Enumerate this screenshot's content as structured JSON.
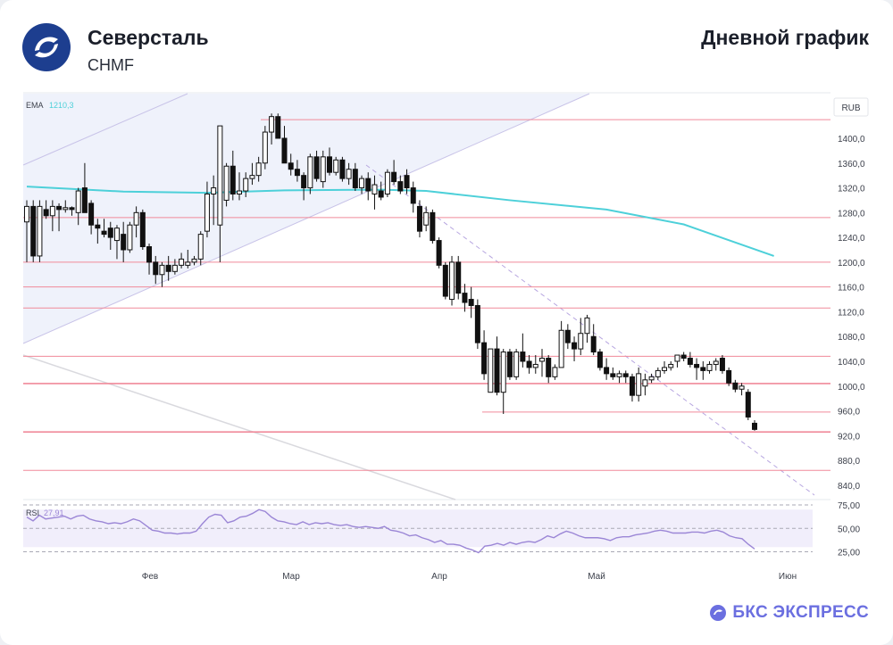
{
  "header": {
    "company": "Северсталь",
    "ticker": "CHMF",
    "chart_title": "Дневной график"
  },
  "brand": {
    "name": "БКС ЭКСПРЕСС"
  },
  "colors": {
    "candle_up": "#ffffff",
    "candle_down": "#111111",
    "ema": "#4dd0d9",
    "level": "#f08a9a",
    "rsi": "#9b86d6",
    "channel_fill": "#edf1fb",
    "brand": "#6b6fe0"
  },
  "chart_data": [
    {
      "type": "candlestick",
      "currency_label": "RUB",
      "ylim": [
        820,
        1450
      ],
      "y_ticks": [
        "1400,0",
        "1360,0",
        "1320,0",
        "1280,0",
        "1240,0",
        "1200,0",
        "1160,0",
        "1120,0",
        "1080,0",
        "1040,0",
        "1000,0",
        "960,0",
        "920,0",
        "880,0",
        "840,0"
      ],
      "x_ticks": [
        "Фев",
        "Мар",
        "Апр",
        "Май",
        "Июн"
      ],
      "indicator": {
        "name": "EMA",
        "value": "1210,3"
      },
      "levels": [
        1430,
        1272,
        1200,
        1160,
        1126,
        1048,
        1004,
        958,
        926,
        864
      ],
      "ohlc": [
        [
          1265,
          1300,
          1200,
          1290
        ],
        [
          1290,
          1300,
          1200,
          1210
        ],
        [
          1210,
          1300,
          1200,
          1290
        ],
        [
          1285,
          1300,
          1270,
          1275
        ],
        [
          1275,
          1300,
          1250,
          1290
        ],
        [
          1290,
          1295,
          1250,
          1285
        ],
        [
          1285,
          1300,
          1280,
          1288
        ],
        [
          1288,
          1290,
          1275,
          1285
        ],
        [
          1280,
          1320,
          1260,
          1315
        ],
        [
          1320,
          1360,
          1280,
          1280
        ],
        [
          1295,
          1300,
          1245,
          1260
        ],
        [
          1260,
          1270,
          1230,
          1255
        ],
        [
          1250,
          1270,
          1240,
          1245
        ],
        [
          1255,
          1265,
          1220,
          1240
        ],
        [
          1235,
          1260,
          1205,
          1255
        ],
        [
          1245,
          1265,
          1200,
          1220
        ],
        [
          1220,
          1265,
          1215,
          1260
        ],
        [
          1260,
          1290,
          1240,
          1280
        ],
        [
          1280,
          1285,
          1220,
          1225
        ],
        [
          1225,
          1230,
          1180,
          1200
        ],
        [
          1200,
          1210,
          1165,
          1180
        ],
        [
          1180,
          1200,
          1160,
          1195
        ],
        [
          1195,
          1210,
          1170,
          1185
        ],
        [
          1185,
          1205,
          1180,
          1195
        ],
        [
          1195,
          1215,
          1190,
          1205
        ],
        [
          1195,
          1220,
          1190,
          1200
        ],
        [
          1200,
          1210,
          1195,
          1205
        ],
        [
          1205,
          1250,
          1195,
          1245
        ],
        [
          1250,
          1330,
          1240,
          1310
        ],
        [
          1310,
          1340,
          1260,
          1320
        ],
        [
          1260,
          1420,
          1200,
          1420
        ],
        [
          1300,
          1360,
          1290,
          1355
        ],
        [
          1355,
          1380,
          1300,
          1310
        ],
        [
          1310,
          1345,
          1300,
          1315
        ],
        [
          1315,
          1345,
          1305,
          1335
        ],
        [
          1335,
          1360,
          1325,
          1340
        ],
        [
          1340,
          1370,
          1330,
          1360
        ],
        [
          1360,
          1420,
          1350,
          1410
        ],
        [
          1410,
          1440,
          1390,
          1435
        ],
        [
          1435,
          1440,
          1400,
          1400
        ],
        [
          1400,
          1420,
          1360,
          1360
        ],
        [
          1360,
          1375,
          1340,
          1350
        ],
        [
          1350,
          1365,
          1330,
          1340
        ],
        [
          1340,
          1345,
          1300,
          1320
        ],
        [
          1320,
          1375,
          1310,
          1370
        ],
        [
          1370,
          1380,
          1330,
          1335
        ],
        [
          1330,
          1380,
          1320,
          1370
        ],
        [
          1370,
          1385,
          1340,
          1345
        ],
        [
          1345,
          1370,
          1340,
          1365
        ],
        [
          1365,
          1370,
          1330,
          1335
        ],
        [
          1335,
          1360,
          1325,
          1350
        ],
        [
          1350,
          1360,
          1315,
          1320
        ],
        [
          1320,
          1340,
          1310,
          1335
        ],
        [
          1335,
          1345,
          1300,
          1315
        ],
        [
          1310,
          1340,
          1285,
          1325
        ],
        [
          1315,
          1330,
          1300,
          1305
        ],
        [
          1310,
          1350,
          1305,
          1345
        ],
        [
          1345,
          1365,
          1325,
          1330
        ],
        [
          1330,
          1340,
          1310,
          1315
        ],
        [
          1340,
          1350,
          1310,
          1320
        ],
        [
          1320,
          1330,
          1280,
          1295
        ],
        [
          1290,
          1300,
          1240,
          1250
        ],
        [
          1260,
          1290,
          1250,
          1280
        ],
        [
          1280,
          1285,
          1230,
          1235
        ],
        [
          1235,
          1240,
          1190,
          1195
        ],
        [
          1195,
          1200,
          1140,
          1145
        ],
        [
          1140,
          1210,
          1130,
          1200
        ],
        [
          1200,
          1210,
          1140,
          1150
        ],
        [
          1150,
          1165,
          1120,
          1135
        ],
        [
          1140,
          1160,
          1110,
          1130
        ],
        [
          1130,
          1140,
          1060,
          1070
        ],
        [
          1070,
          1090,
          1010,
          1020
        ],
        [
          990,
          1060,
          990,
          1060
        ],
        [
          1060,
          1080,
          985,
          990
        ],
        [
          990,
          1060,
          955,
          1055
        ],
        [
          1055,
          1060,
          1010,
          1015
        ],
        [
          1015,
          1060,
          1010,
          1055
        ],
        [
          1055,
          1085,
          1030,
          1040
        ],
        [
          1040,
          1050,
          1020,
          1030
        ],
        [
          1030,
          1050,
          1020,
          1035
        ],
        [
          1040,
          1060,
          1015,
          1045
        ],
        [
          1045,
          1050,
          1005,
          1015
        ],
        [
          1015,
          1035,
          1010,
          1030
        ],
        [
          1030,
          1105,
          1030,
          1090
        ],
        [
          1090,
          1100,
          1060,
          1070
        ],
        [
          1070,
          1080,
          1040,
          1060
        ],
        [
          1060,
          1110,
          1050,
          1085
        ],
        [
          1085,
          1115,
          1070,
          1110
        ],
        [
          1080,
          1100,
          1050,
          1055
        ],
        [
          1055,
          1060,
          1025,
          1030
        ],
        [
          1030,
          1045,
          1010,
          1020
        ],
        [
          1020,
          1030,
          1010,
          1015
        ],
        [
          1015,
          1025,
          1005,
          1020
        ],
        [
          1020,
          1025,
          1005,
          1015
        ],
        [
          1015,
          1020,
          975,
          985
        ],
        [
          985,
          1030,
          975,
          1020
        ],
        [
          1000,
          1020,
          985,
          1010
        ],
        [
          1010,
          1020,
          1005,
          1015
        ],
        [
          1015,
          1030,
          1010,
          1025
        ],
        [
          1025,
          1040,
          1020,
          1030
        ],
        [
          1030,
          1040,
          1025,
          1035
        ],
        [
          1040,
          1050,
          1030,
          1050
        ],
        [
          1050,
          1055,
          1040,
          1045
        ],
        [
          1045,
          1055,
          1030,
          1035
        ],
        [
          1035,
          1045,
          1010,
          1030
        ],
        [
          1030,
          1040,
          1010,
          1025
        ],
        [
          1025,
          1040,
          1020,
          1035
        ],
        [
          1035,
          1045,
          1025,
          1040
        ],
        [
          1045,
          1050,
          1020,
          1025
        ],
        [
          1025,
          1030,
          1000,
          1005
        ],
        [
          1005,
          1010,
          990,
          995
        ],
        [
          995,
          1005,
          985,
          1000
        ],
        [
          990,
          995,
          945,
          950
        ],
        [
          940,
          945,
          928,
          930
        ]
      ],
      "ema_points": [
        [
          0,
          1322
        ],
        [
          15,
          1314
        ],
        [
          28,
          1312
        ],
        [
          40,
          1316
        ],
        [
          55,
          1317
        ],
        [
          62,
          1315
        ],
        [
          75,
          1300
        ],
        [
          90,
          1285
        ],
        [
          102,
          1261
        ],
        [
          116,
          1210
        ]
      ]
    },
    {
      "type": "line",
      "indicator": {
        "name": "RSI",
        "value": "27,91"
      },
      "ylim": [
        20,
        75
      ],
      "y_ticks": [
        "75,00",
        "50,00",
        "25,00"
      ],
      "band": [
        30,
        70
      ],
      "values": [
        62,
        58,
        64,
        60,
        61,
        62,
        63,
        60,
        63,
        64,
        60,
        58,
        57,
        55,
        56,
        55,
        57,
        60,
        58,
        53,
        48,
        47,
        45,
        45,
        44,
        45,
        45,
        47,
        55,
        62,
        65,
        64,
        56,
        58,
        62,
        63,
        66,
        70,
        68,
        62,
        58,
        57,
        55,
        54,
        57,
        54,
        56,
        55,
        56,
        54,
        53,
        54,
        52,
        51,
        52,
        51,
        50,
        52,
        48,
        47,
        45,
        42,
        43,
        40,
        38,
        35,
        37,
        33,
        33,
        32,
        29,
        27,
        24,
        31,
        32,
        34,
        32,
        35,
        33,
        35,
        36,
        35,
        38,
        42,
        40,
        44,
        47,
        45,
        42,
        40,
        40,
        40,
        39,
        37,
        40,
        41,
        41,
        43,
        44,
        45,
        47,
        48,
        47,
        45,
        45,
        45,
        46,
        46,
        45,
        47,
        48,
        46,
        42,
        40,
        39,
        33,
        28
      ]
    }
  ]
}
